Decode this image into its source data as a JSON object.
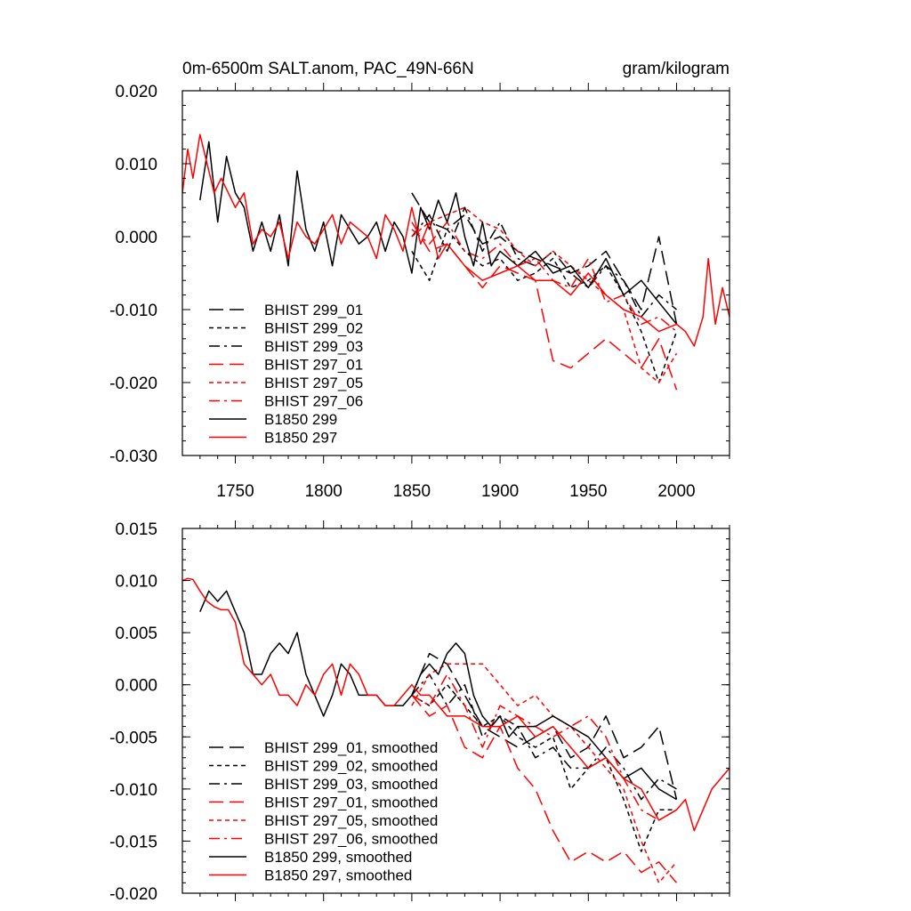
{
  "chart_data": [
    {
      "type": "line",
      "title": "0m-6500m SALT.anom, PAC_49N-66N",
      "units": "gram/kilogram",
      "xlim": [
        1720,
        2030
      ],
      "ylim": [
        -0.03,
        0.02
      ],
      "xticks": [
        1750,
        1800,
        1850,
        1900,
        1950,
        2000
      ],
      "xtick_labels": [
        "1750",
        "1800",
        "1850",
        "1900",
        "1950",
        "2000"
      ],
      "yticks": [
        0.02,
        0.01,
        0.0,
        -0.01,
        -0.02,
        -0.03
      ],
      "ytick_labels": [
        "0.020",
        "0.010",
        "0.000",
        "-0.010",
        "-0.020",
        "-0.030"
      ],
      "grid": false,
      "legend_position": "bottom-left",
      "series": [
        {
          "name": "BHIST 299_01",
          "color": "#000000",
          "dash": "longdash",
          "x": [
            1850,
            1860,
            1870,
            1880,
            1890,
            1900,
            1910,
            1920,
            1930,
            1940,
            1950,
            1960,
            1970,
            1980,
            1990,
            2000
          ],
          "y": [
            0.006,
            0.002,
            0.001,
            0.003,
            -0.001,
            0.0,
            -0.002,
            -0.003,
            -0.004,
            -0.005,
            -0.004,
            -0.002,
            -0.006,
            -0.01,
            0.0,
            -0.012
          ]
        },
        {
          "name": "BHIST 299_02",
          "color": "#000000",
          "dash": "shortdash",
          "x": [
            1850,
            1860,
            1870,
            1880,
            1890,
            1900,
            1910,
            1920,
            1930,
            1940,
            1950,
            1960,
            1970,
            1980,
            1990,
            2000
          ],
          "y": [
            -0.002,
            -0.006,
            0.001,
            -0.002,
            -0.004,
            -0.003,
            -0.006,
            -0.005,
            -0.003,
            -0.007,
            -0.006,
            -0.004,
            -0.008,
            -0.013,
            -0.02,
            -0.013
          ]
        },
        {
          "name": "BHIST 299_03",
          "color": "#000000",
          "dash": "dashdot",
          "x": [
            1850,
            1860,
            1870,
            1880,
            1890,
            1900,
            1910,
            1920,
            1930,
            1940,
            1950,
            1960,
            1970,
            1980,
            1990,
            2000
          ],
          "y": [
            0.0,
            0.003,
            -0.002,
            0.004,
            -0.002,
            0.002,
            -0.003,
            -0.004,
            -0.002,
            -0.005,
            -0.007,
            -0.004,
            -0.006,
            -0.011,
            -0.008,
            -0.01
          ]
        },
        {
          "name": "BHIST 297_01",
          "color": "#ff0000",
          "dash": "longdash",
          "x": [
            1850,
            1860,
            1870,
            1880,
            1890,
            1900,
            1910,
            1920,
            1930,
            1940,
            1950,
            1960,
            1970,
            1980,
            1990,
            2000
          ],
          "y": [
            0.002,
            -0.002,
            -0.001,
            -0.004,
            -0.007,
            -0.004,
            -0.005,
            -0.006,
            -0.017,
            -0.018,
            -0.016,
            -0.014,
            -0.016,
            -0.018,
            -0.014,
            -0.021
          ]
        },
        {
          "name": "BHIST 297_05",
          "color": "#ff0000",
          "dash": "shortdash",
          "x": [
            1850,
            1860,
            1870,
            1880,
            1890,
            1900,
            1910,
            1920,
            1930,
            1940,
            1950,
            1960,
            1970,
            1980,
            1990,
            2000
          ],
          "y": [
            0.0,
            0.002,
            0.003,
            0.004,
            0.002,
            0.001,
            -0.002,
            -0.004,
            -0.002,
            -0.004,
            -0.006,
            -0.008,
            -0.01,
            -0.018,
            -0.02,
            -0.016
          ]
        },
        {
          "name": "BHIST 297_06",
          "color": "#ff0000",
          "dash": "dashdot",
          "x": [
            1850,
            1860,
            1870,
            1880,
            1890,
            1900,
            1910,
            1920,
            1930,
            1940,
            1950,
            1960,
            1970,
            1980,
            1990,
            2000
          ],
          "y": [
            0.001,
            -0.001,
            0.002,
            -0.002,
            -0.003,
            -0.001,
            -0.004,
            -0.003,
            -0.006,
            -0.007,
            -0.003,
            -0.009,
            -0.008,
            -0.012,
            -0.011,
            -0.013
          ]
        },
        {
          "name": "B1850 299",
          "color": "#000000",
          "dash": "solid",
          "x": [
            1730,
            1735,
            1740,
            1745,
            1750,
            1755,
            1760,
            1765,
            1770,
            1775,
            1780,
            1785,
            1790,
            1795,
            1800,
            1805,
            1810,
            1815,
            1820,
            1825,
            1830,
            1835,
            1840,
            1845,
            1850,
            1855,
            1860,
            1865,
            1870,
            1875,
            1880,
            1885,
            1890,
            1895,
            1900,
            1910,
            1920,
            1930,
            1940,
            1950,
            1960,
            1970,
            1980,
            1990,
            2000
          ],
          "y": [
            0.005,
            0.013,
            0.002,
            0.011,
            0.006,
            0.004,
            -0.002,
            0.002,
            -0.002,
            0.003,
            -0.004,
            0.009,
            0.001,
            -0.002,
            0.002,
            -0.004,
            0.003,
            0.001,
            -0.001,
            0.0,
            0.002,
            -0.002,
            0.002,
            0.0,
            -0.005,
            0.004,
            0.001,
            0.005,
            0.002,
            0.006,
            0.0,
            -0.004,
            0.002,
            -0.004,
            -0.002,
            -0.004,
            -0.002,
            -0.005,
            -0.004,
            -0.007,
            -0.003,
            -0.008,
            -0.006,
            -0.009,
            -0.012
          ]
        },
        {
          "name": "B1850 297",
          "color": "#ff0000",
          "dash": "solid",
          "x": [
            1720,
            1723,
            1726,
            1730,
            1734,
            1738,
            1742,
            1746,
            1750,
            1755,
            1760,
            1765,
            1770,
            1775,
            1780,
            1785,
            1790,
            1795,
            1800,
            1805,
            1810,
            1815,
            1820,
            1825,
            1830,
            1835,
            1840,
            1845,
            1850,
            1855,
            1860,
            1865,
            1870,
            1880,
            1890,
            1900,
            1910,
            1920,
            1930,
            1940,
            1950,
            1960,
            1970,
            1980,
            1990,
            2000,
            2005,
            2010,
            2015,
            2018,
            2022,
            2026,
            2030
          ],
          "y": [
            0.006,
            0.012,
            0.008,
            0.014,
            0.01,
            0.006,
            0.008,
            0.006,
            0.004,
            0.006,
            -0.001,
            0.001,
            0.0,
            0.002,
            -0.003,
            0.002,
            0.0,
            -0.001,
            0.001,
            0.003,
            -0.001,
            0.002,
            0.001,
            0.0,
            -0.003,
            0.003,
            0.001,
            -0.002,
            0.004,
            -0.001,
            0.002,
            -0.003,
            -0.001,
            -0.004,
            -0.006,
            -0.005,
            -0.004,
            -0.006,
            -0.006,
            -0.008,
            -0.005,
            -0.008,
            -0.01,
            -0.011,
            -0.013,
            -0.012,
            -0.013,
            -0.015,
            -0.011,
            -0.003,
            -0.012,
            -0.007,
            -0.011
          ]
        }
      ]
    },
    {
      "type": "line",
      "xlim": [
        1720,
        2030
      ],
      "ylim": [
        -0.02,
        0.015
      ],
      "xticks": [
        1750,
        1800,
        1850,
        1900,
        1950,
        2000
      ],
      "yticks": [
        0.015,
        0.01,
        0.005,
        0.0,
        -0.005,
        -0.01,
        -0.015,
        -0.02
      ],
      "ytick_labels": [
        "0.015",
        "0.010",
        "0.005",
        "0.000",
        "-0.005",
        "-0.010",
        "-0.015",
        "-0.020"
      ],
      "grid": false,
      "legend_position": "bottom-left",
      "series": [
        {
          "name": "BHIST 299_01, smoothed",
          "color": "#000000",
          "dash": "longdash",
          "x": [
            1850,
            1860,
            1870,
            1880,
            1890,
            1900,
            1910,
            1920,
            1930,
            1940,
            1950,
            1960,
            1970,
            1980,
            1990,
            2000
          ],
          "y": [
            -0.001,
            0.003,
            0.002,
            -0.001,
            -0.004,
            -0.005,
            -0.006,
            -0.005,
            -0.004,
            -0.007,
            -0.006,
            -0.003,
            -0.007,
            -0.006,
            -0.004,
            -0.011
          ]
        },
        {
          "name": "BHIST 299_02, smoothed",
          "color": "#000000",
          "dash": "shortdash",
          "x": [
            1850,
            1860,
            1870,
            1880,
            1890,
            1900,
            1910,
            1920,
            1930,
            1940,
            1950,
            1960,
            1970,
            1980,
            1990,
            2000
          ],
          "y": [
            -0.001,
            -0.002,
            0.0,
            -0.002,
            -0.004,
            -0.003,
            -0.005,
            -0.006,
            -0.005,
            -0.01,
            -0.008,
            -0.007,
            -0.011,
            -0.016,
            -0.012,
            -0.012
          ]
        },
        {
          "name": "BHIST 299_03, smoothed",
          "color": "#000000",
          "dash": "dashdot",
          "x": [
            1850,
            1860,
            1870,
            1880,
            1890,
            1900,
            1910,
            1920,
            1930,
            1940,
            1950,
            1960,
            1970,
            1980,
            1990,
            2000
          ],
          "y": [
            -0.001,
            0.001,
            -0.002,
            0.0,
            -0.005,
            -0.003,
            -0.004,
            -0.007,
            -0.006,
            -0.008,
            -0.008,
            -0.006,
            -0.008,
            -0.011,
            -0.009,
            -0.01
          ]
        },
        {
          "name": "BHIST 297_01, smoothed",
          "color": "#ff0000",
          "dash": "longdash",
          "x": [
            1850,
            1860,
            1870,
            1880,
            1890,
            1900,
            1910,
            1920,
            1930,
            1940,
            1950,
            1960,
            1970,
            1980,
            1990,
            2000
          ],
          "y": [
            -0.001,
            -0.003,
            -0.002,
            -0.006,
            -0.007,
            -0.004,
            -0.008,
            -0.01,
            -0.014,
            -0.017,
            -0.016,
            -0.017,
            -0.016,
            -0.018,
            -0.017,
            -0.019
          ]
        },
        {
          "name": "BHIST 297_05, smoothed",
          "color": "#ff0000",
          "dash": "shortdash",
          "x": [
            1850,
            1860,
            1870,
            1880,
            1890,
            1900,
            1910,
            1920,
            1930,
            1940,
            1950,
            1960,
            1970,
            1980,
            1990,
            2000
          ],
          "y": [
            -0.002,
            0.001,
            0.002,
            0.002,
            0.002,
            0.0,
            -0.002,
            -0.001,
            -0.003,
            -0.004,
            -0.006,
            -0.008,
            -0.01,
            -0.015,
            -0.019,
            -0.017
          ]
        },
        {
          "name": "BHIST 297_06, smoothed",
          "color": "#ff0000",
          "dash": "dashdot",
          "x": [
            1850,
            1860,
            1870,
            1880,
            1890,
            1900,
            1910,
            1920,
            1930,
            1940,
            1950,
            1960,
            1970,
            1980,
            1990,
            2000
          ],
          "y": [
            -0.001,
            -0.002,
            0.001,
            -0.002,
            -0.006,
            -0.002,
            -0.003,
            -0.004,
            -0.005,
            -0.004,
            -0.003,
            -0.005,
            -0.009,
            -0.012,
            -0.013,
            -0.012
          ]
        },
        {
          "name": "B1850 299, smoothed",
          "color": "#000000",
          "dash": "solid",
          "x": [
            1730,
            1735,
            1740,
            1745,
            1750,
            1755,
            1760,
            1765,
            1770,
            1775,
            1780,
            1785,
            1790,
            1795,
            1800,
            1805,
            1810,
            1815,
            1820,
            1825,
            1830,
            1835,
            1840,
            1845,
            1850,
            1855,
            1860,
            1865,
            1870,
            1875,
            1880,
            1885,
            1890,
            1895,
            1900,
            1905,
            1910,
            1920,
            1930,
            1940,
            1950,
            1960,
            1970,
            1980,
            1990,
            2000
          ],
          "y": [
            0.007,
            0.009,
            0.008,
            0.009,
            0.007,
            0.005,
            0.001,
            0.001,
            0.003,
            0.004,
            0.003,
            0.005,
            0.001,
            -0.001,
            -0.003,
            -0.001,
            0.002,
            0.001,
            -0.001,
            -0.001,
            -0.001,
            -0.002,
            -0.002,
            -0.002,
            -0.001,
            0.001,
            0.002,
            0.001,
            0.003,
            0.004,
            0.003,
            -0.001,
            -0.003,
            -0.004,
            -0.003,
            -0.005,
            -0.004,
            -0.004,
            -0.003,
            -0.004,
            -0.005,
            -0.007,
            -0.009,
            -0.008,
            -0.01,
            -0.011
          ]
        },
        {
          "name": "B1850 297, smoothed",
          "color": "#ff0000",
          "dash": "solid",
          "x": [
            1720,
            1723,
            1726,
            1730,
            1734,
            1738,
            1742,
            1746,
            1750,
            1755,
            1760,
            1765,
            1770,
            1775,
            1780,
            1785,
            1790,
            1795,
            1800,
            1805,
            1810,
            1815,
            1820,
            1825,
            1830,
            1835,
            1840,
            1845,
            1850,
            1855,
            1860,
            1865,
            1870,
            1880,
            1890,
            1900,
            1910,
            1920,
            1930,
            1940,
            1950,
            1960,
            1970,
            1980,
            1990,
            2000,
            2005,
            2010,
            2015,
            2020,
            2025,
            2030
          ],
          "y": [
            0.01,
            0.0102,
            0.0101,
            0.009,
            0.008,
            0.0075,
            0.0072,
            0.0072,
            0.006,
            0.002,
            0.001,
            0.0,
            0.001,
            -0.001,
            -0.001,
            -0.002,
            0.0,
            -0.001,
            0.001,
            0.002,
            -0.001,
            0.002,
            0.001,
            -0.001,
            -0.001,
            -0.002,
            -0.002,
            -0.001,
            0.0,
            -0.001,
            -0.001,
            -0.002,
            -0.003,
            -0.003,
            -0.004,
            -0.004,
            -0.003,
            -0.005,
            -0.004,
            -0.006,
            -0.008,
            -0.007,
            -0.009,
            -0.01,
            -0.013,
            -0.012,
            -0.011,
            -0.014,
            -0.012,
            -0.01,
            -0.009,
            -0.008
          ]
        }
      ]
    }
  ]
}
